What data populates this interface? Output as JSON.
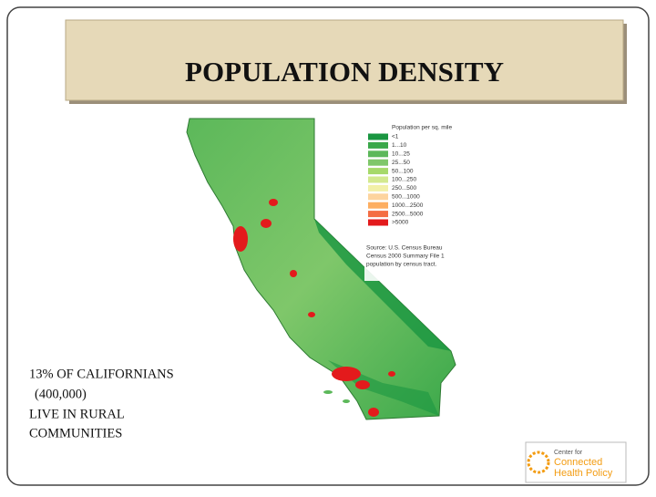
{
  "header": {
    "title": "POPULATION DENSITY"
  },
  "map": {
    "legend": {
      "title": "Population per sq. mile",
      "items": [
        {
          "label": "<1",
          "color": "#1a9641"
        },
        {
          "label": "1...10",
          "color": "#3aa84a"
        },
        {
          "label": "10...25",
          "color": "#5cb85a"
        },
        {
          "label": "25...50",
          "color": "#7fc76a"
        },
        {
          "label": "50...100",
          "color": "#a6d96a"
        },
        {
          "label": "100...250",
          "color": "#d3e98f"
        },
        {
          "label": "250...500",
          "color": "#f2f0a8"
        },
        {
          "label": "500...1000",
          "color": "#fdd49e"
        },
        {
          "label": "1000...2500",
          "color": "#fdae61"
        },
        {
          "label": "2500...5000",
          "color": "#f46d43"
        },
        {
          "label": ">5000",
          "color": "#e31a1c"
        }
      ]
    },
    "source": [
      "Source: U.S. Census Bureau",
      "Census 2000 Summary File 1",
      "population by census tract."
    ]
  },
  "body": {
    "lines": [
      "13% OF CALIFORNIANS",
      "(400,000)",
      "LIVE IN RURAL",
      "COMMUNITIES"
    ]
  },
  "logo": {
    "lines": [
      "Center for",
      "Connected",
      "Health Policy"
    ]
  }
}
